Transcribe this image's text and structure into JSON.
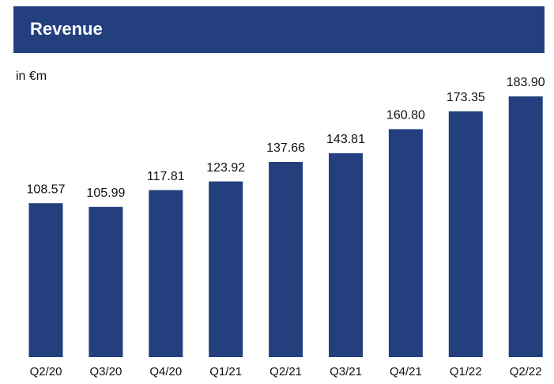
{
  "chart_data": {
    "type": "bar",
    "title": "Revenue",
    "subtitle": "in €m",
    "categories": [
      "Q2/20",
      "Q3/20",
      "Q4/20",
      "Q1/21",
      "Q2/21",
      "Q3/21",
      "Q4/21",
      "Q1/22",
      "Q2/22"
    ],
    "values": [
      108.57,
      105.99,
      117.81,
      123.92,
      137.66,
      143.81,
      160.8,
      173.35,
      183.9
    ],
    "value_labels": [
      "108.57",
      "105.99",
      "117.81",
      "123.92",
      "137.66",
      "143.81",
      "160.80",
      "173.35",
      "183.90"
    ],
    "color": "#233f7e"
  }
}
